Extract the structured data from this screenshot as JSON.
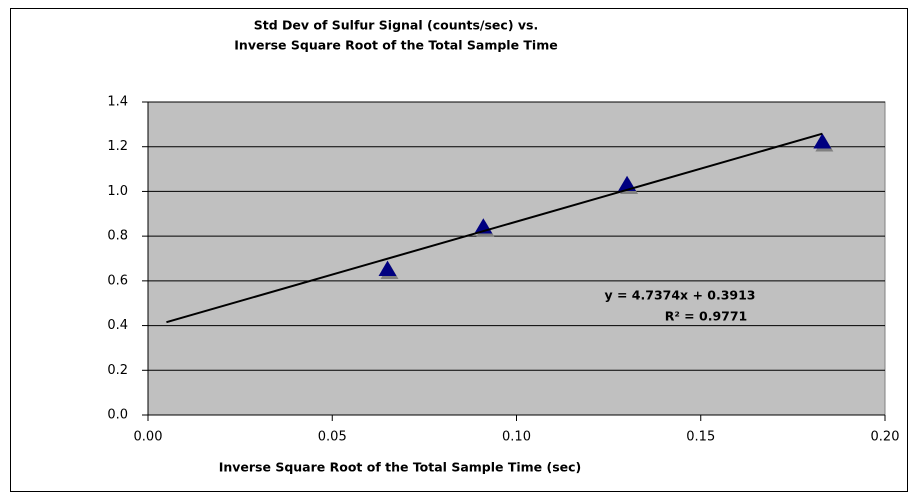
{
  "chart_data": {
    "type": "scatter",
    "title": [
      "Std Dev of Sulfur Signal (counts/sec) vs.",
      "Inverse Square Root of the Total Sample Time"
    ],
    "x_label": "Inverse Square Root of the Total Sample Time (sec)",
    "series": [
      {
        "color": "#000080",
        "x": [
          0.065,
          0.091,
          0.13,
          0.183
        ],
        "values": [
          0.65,
          0.84,
          1.03,
          1.22
        ]
      }
    ],
    "trendline": {
      "slope": 4.7374,
      "intercept": 0.3913,
      "xrange": [
        0.005,
        0.183
      ],
      "color": "#000000",
      "equation": "y = 4.7374x + 0.3913",
      "r2": "R² = 0.9771"
    },
    "xlim": [
      0,
      0.2
    ],
    "xticks": [
      {
        "value": 0,
        "label": "0.00"
      },
      {
        "value": 0.05,
        "label": "0.05"
      },
      {
        "value": 0.1,
        "label": "0.10"
      },
      {
        "value": 0.15,
        "label": "0.15"
      },
      {
        "value": 0.2,
        "label": "0.20"
      }
    ],
    "ylim": [
      0,
      1.4
    ],
    "yticks": [
      {
        "value": 0,
        "label": "0.0"
      },
      0.2,
      0.4,
      0.6,
      0.8,
      {
        "value": 1,
        "label": "1.0"
      },
      1.2,
      1.4
    ],
    "grid": true,
    "plot_background": "#c0c0c0"
  }
}
